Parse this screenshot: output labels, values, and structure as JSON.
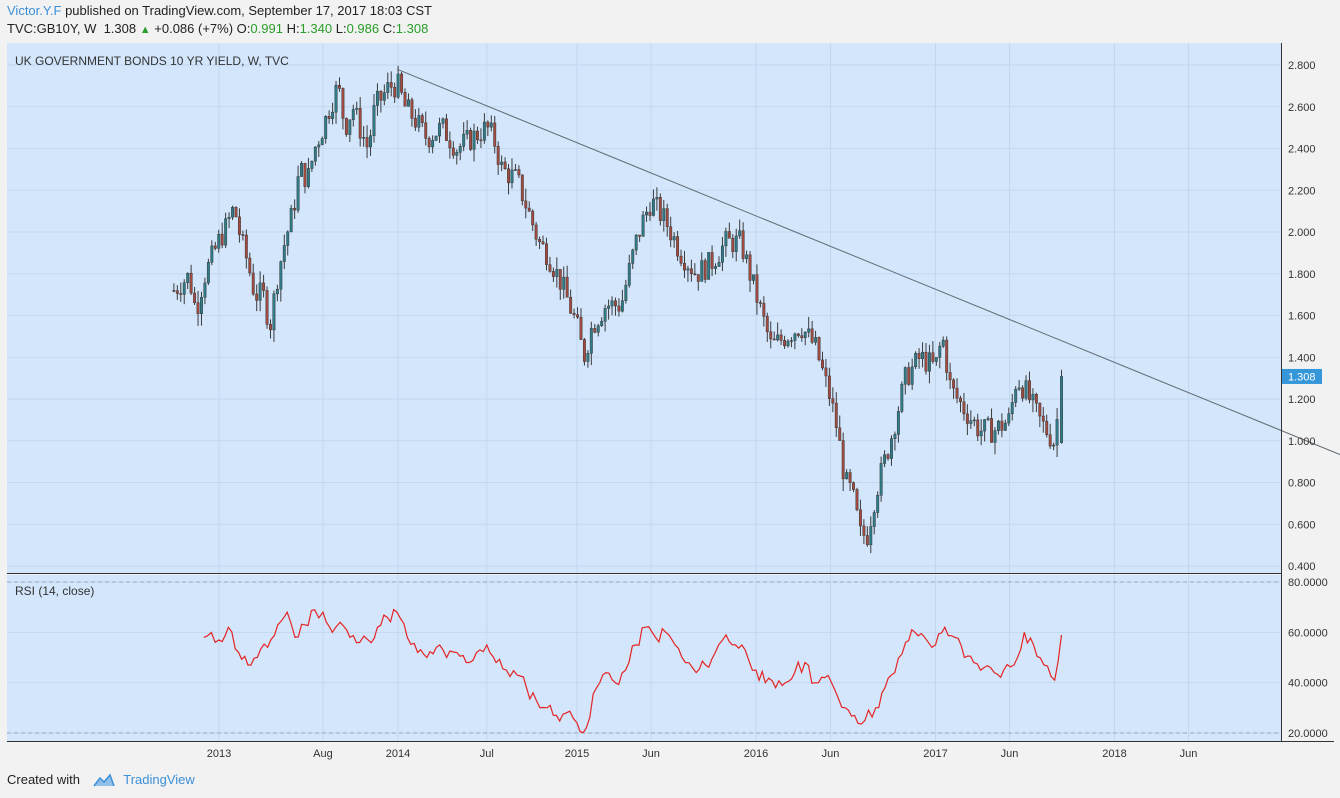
{
  "header": {
    "author": "Victor.Y.F",
    "published_text": "published on TradingView.com, September 17, 2017 18:03 CST",
    "symbol": "TVC:GB10Y, W",
    "last": "1.308",
    "change": "+0.086 (+7%)",
    "open_label": "O:",
    "open": "0.991",
    "high_label": "H:",
    "high": "1.340",
    "low_label": "L:",
    "low": "0.986",
    "close_label": "C:",
    "close": "1.308"
  },
  "footer": {
    "created_with": "Created with",
    "brand": "TradingView"
  },
  "colors": {
    "pane_bg": "#d3e6fb",
    "bull": "#2e7d8a",
    "bear": "#a44a3f",
    "rsi_line": "#e52424",
    "trendline": "#5f6b73",
    "price_badge": "#3597d9"
  },
  "chart_data": [
    {
      "type": "candlestick",
      "title": "UK GOVERNMENT BONDS 10 YR YIELD, W, TVC",
      "ylim": [
        0.4,
        2.8
      ],
      "y_ticks": [
        "0.400",
        "0.600",
        "0.800",
        "1.000",
        "1.200",
        "1.400",
        "1.600",
        "1.800",
        "2.000",
        "2.200",
        "2.400",
        "2.600",
        "2.800"
      ],
      "x_tick_labels": [
        "2013",
        "Aug",
        "2014",
        "Jul",
        "2015",
        "Jun",
        "2016",
        "Jun",
        "2017",
        "Jun",
        "2018",
        "Jun"
      ],
      "last_price_label": "1.308",
      "trendline": {
        "from": [
          "2013-12-30",
          2.78
        ],
        "to": [
          "2019-06-01",
          0.88
        ]
      },
      "weekly_close_path": [
        [
          "2012-10-01",
          1.72
        ],
        [
          "2012-11-01",
          1.79
        ],
        [
          "2012-11-15",
          1.62
        ],
        [
          "2012-12-01",
          1.78
        ],
        [
          "2013-01-01",
          1.96
        ],
        [
          "2013-01-15",
          2.02
        ],
        [
          "2013-02-01",
          2.12
        ],
        [
          "2013-02-15",
          1.96
        ],
        [
          "2013-03-01",
          1.85
        ],
        [
          "2013-03-15",
          1.7
        ],
        [
          "2013-04-01",
          1.7
        ],
        [
          "2013-04-15",
          1.55
        ],
        [
          "2013-05-01",
          1.8
        ],
        [
          "2013-05-15",
          1.95
        ],
        [
          "2013-06-01",
          2.1
        ],
        [
          "2013-06-15",
          2.3
        ],
        [
          "2013-07-01",
          2.25
        ],
        [
          "2013-07-15",
          2.4
        ],
        [
          "2013-08-01",
          2.5
        ],
        [
          "2013-08-15",
          2.6
        ],
        [
          "2013-09-01",
          2.7
        ],
        [
          "2013-09-15",
          2.5
        ],
        [
          "2013-10-01",
          2.6
        ],
        [
          "2013-10-15",
          2.5
        ],
        [
          "2013-11-01",
          2.4
        ],
        [
          "2013-11-15",
          2.6
        ],
        [
          "2013-12-01",
          2.65
        ],
        [
          "2013-12-15",
          2.7
        ],
        [
          "2014-01-01",
          2.7
        ],
        [
          "2014-01-15",
          2.6
        ],
        [
          "2014-02-01",
          2.55
        ],
        [
          "2014-02-15",
          2.5
        ],
        [
          "2014-03-01",
          2.45
        ],
        [
          "2014-04-01",
          2.5
        ],
        [
          "2014-05-01",
          2.4
        ],
        [
          "2014-06-01",
          2.45
        ],
        [
          "2014-07-01",
          2.5
        ],
        [
          "2014-07-15",
          2.45
        ],
        [
          "2014-08-01",
          2.3
        ],
        [
          "2014-09-01",
          2.25
        ],
        [
          "2014-10-01",
          2.05
        ],
        [
          "2014-10-15",
          1.95
        ],
        [
          "2014-11-01",
          1.9
        ],
        [
          "2014-12-01",
          1.75
        ],
        [
          "2015-01-01",
          1.55
        ],
        [
          "2015-01-15",
          1.4
        ],
        [
          "2015-02-01",
          1.55
        ],
        [
          "2015-03-01",
          1.65
        ],
        [
          "2015-04-01",
          1.65
        ],
        [
          "2015-05-01",
          1.95
        ],
        [
          "2015-05-15",
          2.05
        ],
        [
          "2015-06-01",
          2.15
        ],
        [
          "2015-07-01",
          2.05
        ],
        [
          "2015-08-01",
          1.9
        ],
        [
          "2015-09-01",
          1.8
        ],
        [
          "2015-10-01",
          1.85
        ],
        [
          "2015-11-01",
          1.95
        ],
        [
          "2015-12-01",
          1.95
        ],
        [
          "2016-01-01",
          1.7
        ],
        [
          "2016-02-01",
          1.45
        ],
        [
          "2016-03-01",
          1.5
        ],
        [
          "2016-04-01",
          1.55
        ],
        [
          "2016-05-01",
          1.45
        ],
        [
          "2016-06-01",
          1.2
        ],
        [
          "2016-06-15",
          1.05
        ],
        [
          "2016-07-01",
          0.8
        ],
        [
          "2016-07-15",
          0.75
        ],
        [
          "2016-08-01",
          0.55
        ],
        [
          "2016-08-15",
          0.55
        ],
        [
          "2016-09-01",
          0.75
        ],
        [
          "2016-10-01",
          1.0
        ],
        [
          "2016-11-01",
          1.3
        ],
        [
          "2016-12-01",
          1.4
        ],
        [
          "2017-01-01",
          1.35
        ],
        [
          "2017-01-15",
          1.5
        ],
        [
          "2017-02-01",
          1.25
        ],
        [
          "2017-03-01",
          1.15
        ],
        [
          "2017-04-01",
          1.05
        ],
        [
          "2017-05-01",
          1.05
        ],
        [
          "2017-06-01",
          1.1
        ],
        [
          "2017-06-15",
          1.3
        ],
        [
          "2017-07-01",
          1.25
        ],
        [
          "2017-08-01",
          1.1
        ],
        [
          "2017-08-15",
          1.05
        ],
        [
          "2017-09-01",
          0.99
        ],
        [
          "2017-09-15",
          1.308
        ]
      ]
    },
    {
      "type": "line",
      "title": "RSI (14, close)",
      "ylim": [
        15,
        85
      ],
      "y_ticks": [
        "20.0000",
        "40.0000",
        "60.0000",
        "80.0000"
      ],
      "band_levels": [
        20,
        80
      ],
      "series_path": [
        [
          "2012-12-01",
          58
        ],
        [
          "2013-01-01",
          57
        ],
        [
          "2013-01-20",
          62
        ],
        [
          "2013-02-10",
          52
        ],
        [
          "2013-03-01",
          47
        ],
        [
          "2013-03-20",
          50
        ],
        [
          "2013-04-10",
          54
        ],
        [
          "2013-05-01",
          63
        ],
        [
          "2013-05-20",
          68
        ],
        [
          "2013-06-05",
          58
        ],
        [
          "2013-06-25",
          63
        ],
        [
          "2013-07-15",
          69
        ],
        [
          "2013-08-01",
          68
        ],
        [
          "2013-08-20",
          60
        ],
        [
          "2013-09-05",
          64
        ],
        [
          "2013-09-25",
          58
        ],
        [
          "2013-10-15",
          56
        ],
        [
          "2013-11-01",
          57
        ],
        [
          "2013-11-20",
          62
        ],
        [
          "2013-12-10",
          66
        ],
        [
          "2013-12-30",
          68
        ],
        [
          "2014-01-20",
          58
        ],
        [
          "2014-02-10",
          52
        ],
        [
          "2014-03-01",
          50
        ],
        [
          "2014-03-20",
          54
        ],
        [
          "2014-04-10",
          50
        ],
        [
          "2014-05-01",
          52
        ],
        [
          "2014-05-20",
          48
        ],
        [
          "2014-06-10",
          52
        ],
        [
          "2014-07-01",
          55
        ],
        [
          "2014-07-20",
          48
        ],
        [
          "2014-08-10",
          45
        ],
        [
          "2014-09-01",
          43
        ],
        [
          "2014-09-20",
          38
        ],
        [
          "2014-10-10",
          33
        ],
        [
          "2014-11-01",
          30
        ],
        [
          "2014-11-20",
          27
        ],
        [
          "2014-12-10",
          28
        ],
        [
          "2015-01-01",
          24
        ],
        [
          "2015-01-20",
          22
        ],
        [
          "2015-02-10",
          38
        ],
        [
          "2015-03-01",
          44
        ],
        [
          "2015-03-20",
          40
        ],
        [
          "2015-04-10",
          45
        ],
        [
          "2015-05-01",
          55
        ],
        [
          "2015-05-20",
          62
        ],
        [
          "2015-06-10",
          58
        ],
        [
          "2015-07-01",
          60
        ],
        [
          "2015-07-20",
          55
        ],
        [
          "2015-08-10",
          48
        ],
        [
          "2015-09-01",
          44
        ],
        [
          "2015-09-20",
          47
        ],
        [
          "2015-10-10",
          52
        ],
        [
          "2015-11-01",
          59
        ],
        [
          "2015-11-20",
          55
        ],
        [
          "2015-12-10",
          53
        ],
        [
          "2016-01-01",
          45
        ],
        [
          "2016-01-20",
          40
        ],
        [
          "2016-02-10",
          38
        ],
        [
          "2016-03-01",
          40
        ],
        [
          "2016-03-20",
          44
        ],
        [
          "2016-04-10",
          48
        ],
        [
          "2016-05-01",
          40
        ],
        [
          "2016-05-20",
          42
        ],
        [
          "2016-06-10",
          37
        ],
        [
          "2016-07-01",
          30
        ],
        [
          "2016-07-20",
          27
        ],
        [
          "2016-08-10",
          25
        ],
        [
          "2016-09-01",
          30
        ],
        [
          "2016-09-20",
          38
        ],
        [
          "2016-10-10",
          44
        ],
        [
          "2016-11-01",
          56
        ],
        [
          "2016-11-20",
          60
        ],
        [
          "2016-12-10",
          58
        ],
        [
          "2017-01-01",
          55
        ],
        [
          "2017-01-20",
          62
        ],
        [
          "2017-02-10",
          58
        ],
        [
          "2017-03-01",
          50
        ],
        [
          "2017-03-20",
          48
        ],
        [
          "2017-04-10",
          46
        ],
        [
          "2017-05-01",
          44
        ],
        [
          "2017-05-20",
          45
        ],
        [
          "2017-06-10",
          47
        ],
        [
          "2017-07-01",
          60
        ],
        [
          "2017-07-20",
          55
        ],
        [
          "2017-08-10",
          47
        ],
        [
          "2017-09-01",
          41
        ],
        [
          "2017-09-15",
          59
        ]
      ]
    }
  ]
}
